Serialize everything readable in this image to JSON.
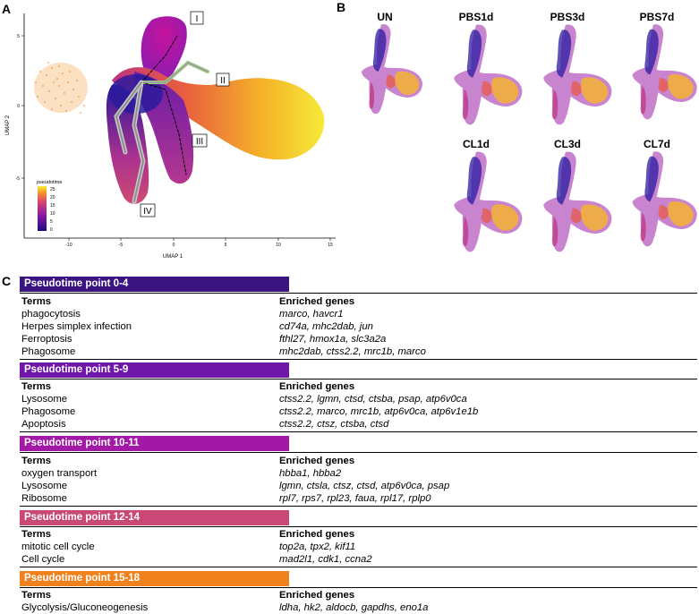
{
  "panel_a": {
    "letter": "A",
    "x_axis_title": "UMAP 1",
    "y_axis_title": "UMAP 2",
    "x_ticks": [
      "-10",
      "-5",
      "0",
      "5",
      "10",
      "15"
    ],
    "y_ticks": [
      "5",
      "0",
      "-5"
    ],
    "legend_title": "pseudotime",
    "legend_ticks": [
      "25",
      "20",
      "15",
      "10",
      "5",
      "0"
    ],
    "trajectory_labels": [
      "I",
      "II",
      "III",
      "IV"
    ]
  },
  "panel_b": {
    "letter": "B",
    "conditions": [
      "UN",
      "PBS1d",
      "PBS3d",
      "PBS7d",
      "CL1d",
      "CL3d",
      "CL7d"
    ]
  },
  "panel_c": {
    "letter": "C",
    "sections": [
      {
        "title": "Pseudotime point 0-4",
        "color": "#3a1480",
        "terms_header": "Terms",
        "genes_header": "Enriched genes",
        "rows": [
          {
            "term": "phagocytosis",
            "genes": "marco, havcr1"
          },
          {
            "term": "Herpes simplex infection",
            "genes": "cd74a, mhc2dab, jun"
          },
          {
            "term": "Ferroptosis",
            "genes": "fthl27, hmox1a, slc3a2a"
          },
          {
            "term": "Phagosome",
            "genes": "mhc2dab, ctss2.2, mrc1b, marco"
          }
        ]
      },
      {
        "title": "Pseudotime point 5-9",
        "color": "#6f17a8",
        "terms_header": "Terms",
        "genes_header": "Enriched genes",
        "rows": [
          {
            "term": "Lysosome",
            "genes": "ctss2.2, lgmn, ctsd, ctsba, psap, atp6v0ca"
          },
          {
            "term": "Phagosome",
            "genes": "ctss2.2, marco, mrc1b, atp6v0ca, atp6v1e1b"
          },
          {
            "term": "Apoptosis",
            "genes": "ctss2.2, ctsz, ctsba, ctsd"
          }
        ]
      },
      {
        "title": "Pseudotime point 10-11",
        "color": "#a219a6",
        "terms_header": "Terms",
        "genes_header": "Enriched genes",
        "rows": [
          {
            "term": "oxygen transport",
            "genes": "hbba1, hbba2"
          },
          {
            "term": "Lysosome",
            "genes": "lgmn, ctsla, ctsz, ctsd, atp6v0ca, psap"
          },
          {
            "term": "Ribosome",
            "genes": "rpl7, rps7, rpl23, faua, rpl17, rplp0"
          }
        ]
      },
      {
        "title": "Pseudotime point 12-14",
        "color": "#c94876",
        "terms_header": "Terms",
        "genes_header": "Enriched genes",
        "rows": [
          {
            "term": "mitotic cell cycle",
            "genes": "top2a, tpx2, kif11"
          },
          {
            "term": "Cell cycle",
            "genes": "mad2l1, cdk1, ccna2"
          }
        ]
      },
      {
        "title": "Pseudotime point 15-18",
        "color": "#f0821e",
        "terms_header": "Terms",
        "genes_header": "Enriched genes",
        "rows": [
          {
            "term": "Glycolysis/Gluconeogenesis",
            "genes": "ldha, hk2, aldocb, gapdhs, eno1a"
          }
        ]
      }
    ]
  }
}
